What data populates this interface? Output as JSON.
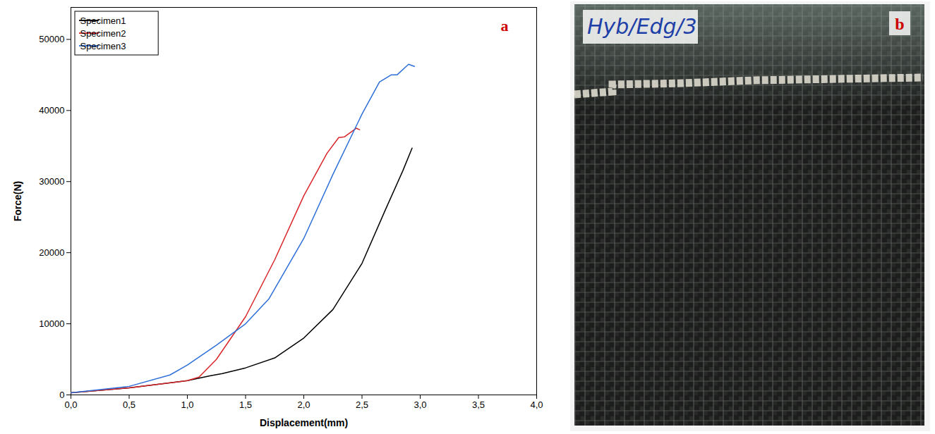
{
  "chart_data": {
    "type": "line",
    "annotation": "a",
    "x_label": "Displacement(mm)",
    "y_label": "Force(N)",
    "xlim": [
      0,
      4.0
    ],
    "xticks": [
      {
        "value": 0,
        "label": "0,0"
      },
      {
        "value": 0.5,
        "label": "0,5"
      },
      {
        "value": 1.0,
        "label": "1,0"
      },
      {
        "value": 1.5,
        "label": "1,5"
      },
      {
        "value": 2.0,
        "label": "2,0"
      },
      {
        "value": 2.5,
        "label": "2,5"
      },
      {
        "value": 3.0,
        "label": "3,0"
      },
      {
        "value": 3.5,
        "label": "3,5"
      },
      {
        "value": 4.0,
        "label": "4,0"
      }
    ],
    "ylim": [
      0,
      54500
    ],
    "yticks": [
      0,
      10000,
      20000,
      30000,
      40000,
      50000
    ],
    "grid": false,
    "legend": "top-left",
    "series": [
      {
        "name": "Specimen1",
        "color": "#000000",
        "x": [
          0,
          0.5,
          1.0,
          1.2,
          1.3,
          1.5,
          1.75,
          2.0,
          2.25,
          2.5,
          2.7,
          2.85,
          2.93
        ],
        "values": [
          300,
          1000,
          2000,
          2700,
          3000,
          3800,
          5200,
          8000,
          12000,
          18500,
          26000,
          31500,
          34700
        ]
      },
      {
        "name": "Specimen2",
        "color": "#d9262a",
        "x": [
          0,
          0.5,
          1.0,
          1.1,
          1.25,
          1.5,
          1.75,
          2.0,
          2.2,
          2.3,
          2.35,
          2.45,
          2.48
        ],
        "values": [
          300,
          1000,
          2000,
          2500,
          5000,
          11000,
          19000,
          28000,
          34000,
          36200,
          36300,
          37500,
          37300
        ]
      },
      {
        "name": "Specimen3",
        "color": "#2e6fd8",
        "x": [
          0,
          0.5,
          0.85,
          1.0,
          1.25,
          1.5,
          1.7,
          2.0,
          2.25,
          2.5,
          2.65,
          2.75,
          2.8,
          2.9,
          2.95
        ],
        "values": [
          300,
          1200,
          2800,
          4200,
          7000,
          10000,
          13500,
          22000,
          31000,
          39500,
          44000,
          45000,
          45000,
          46500,
          46200
        ]
      }
    ]
  },
  "photo": {
    "label": "b",
    "text": "Hyb/Edg/3"
  }
}
